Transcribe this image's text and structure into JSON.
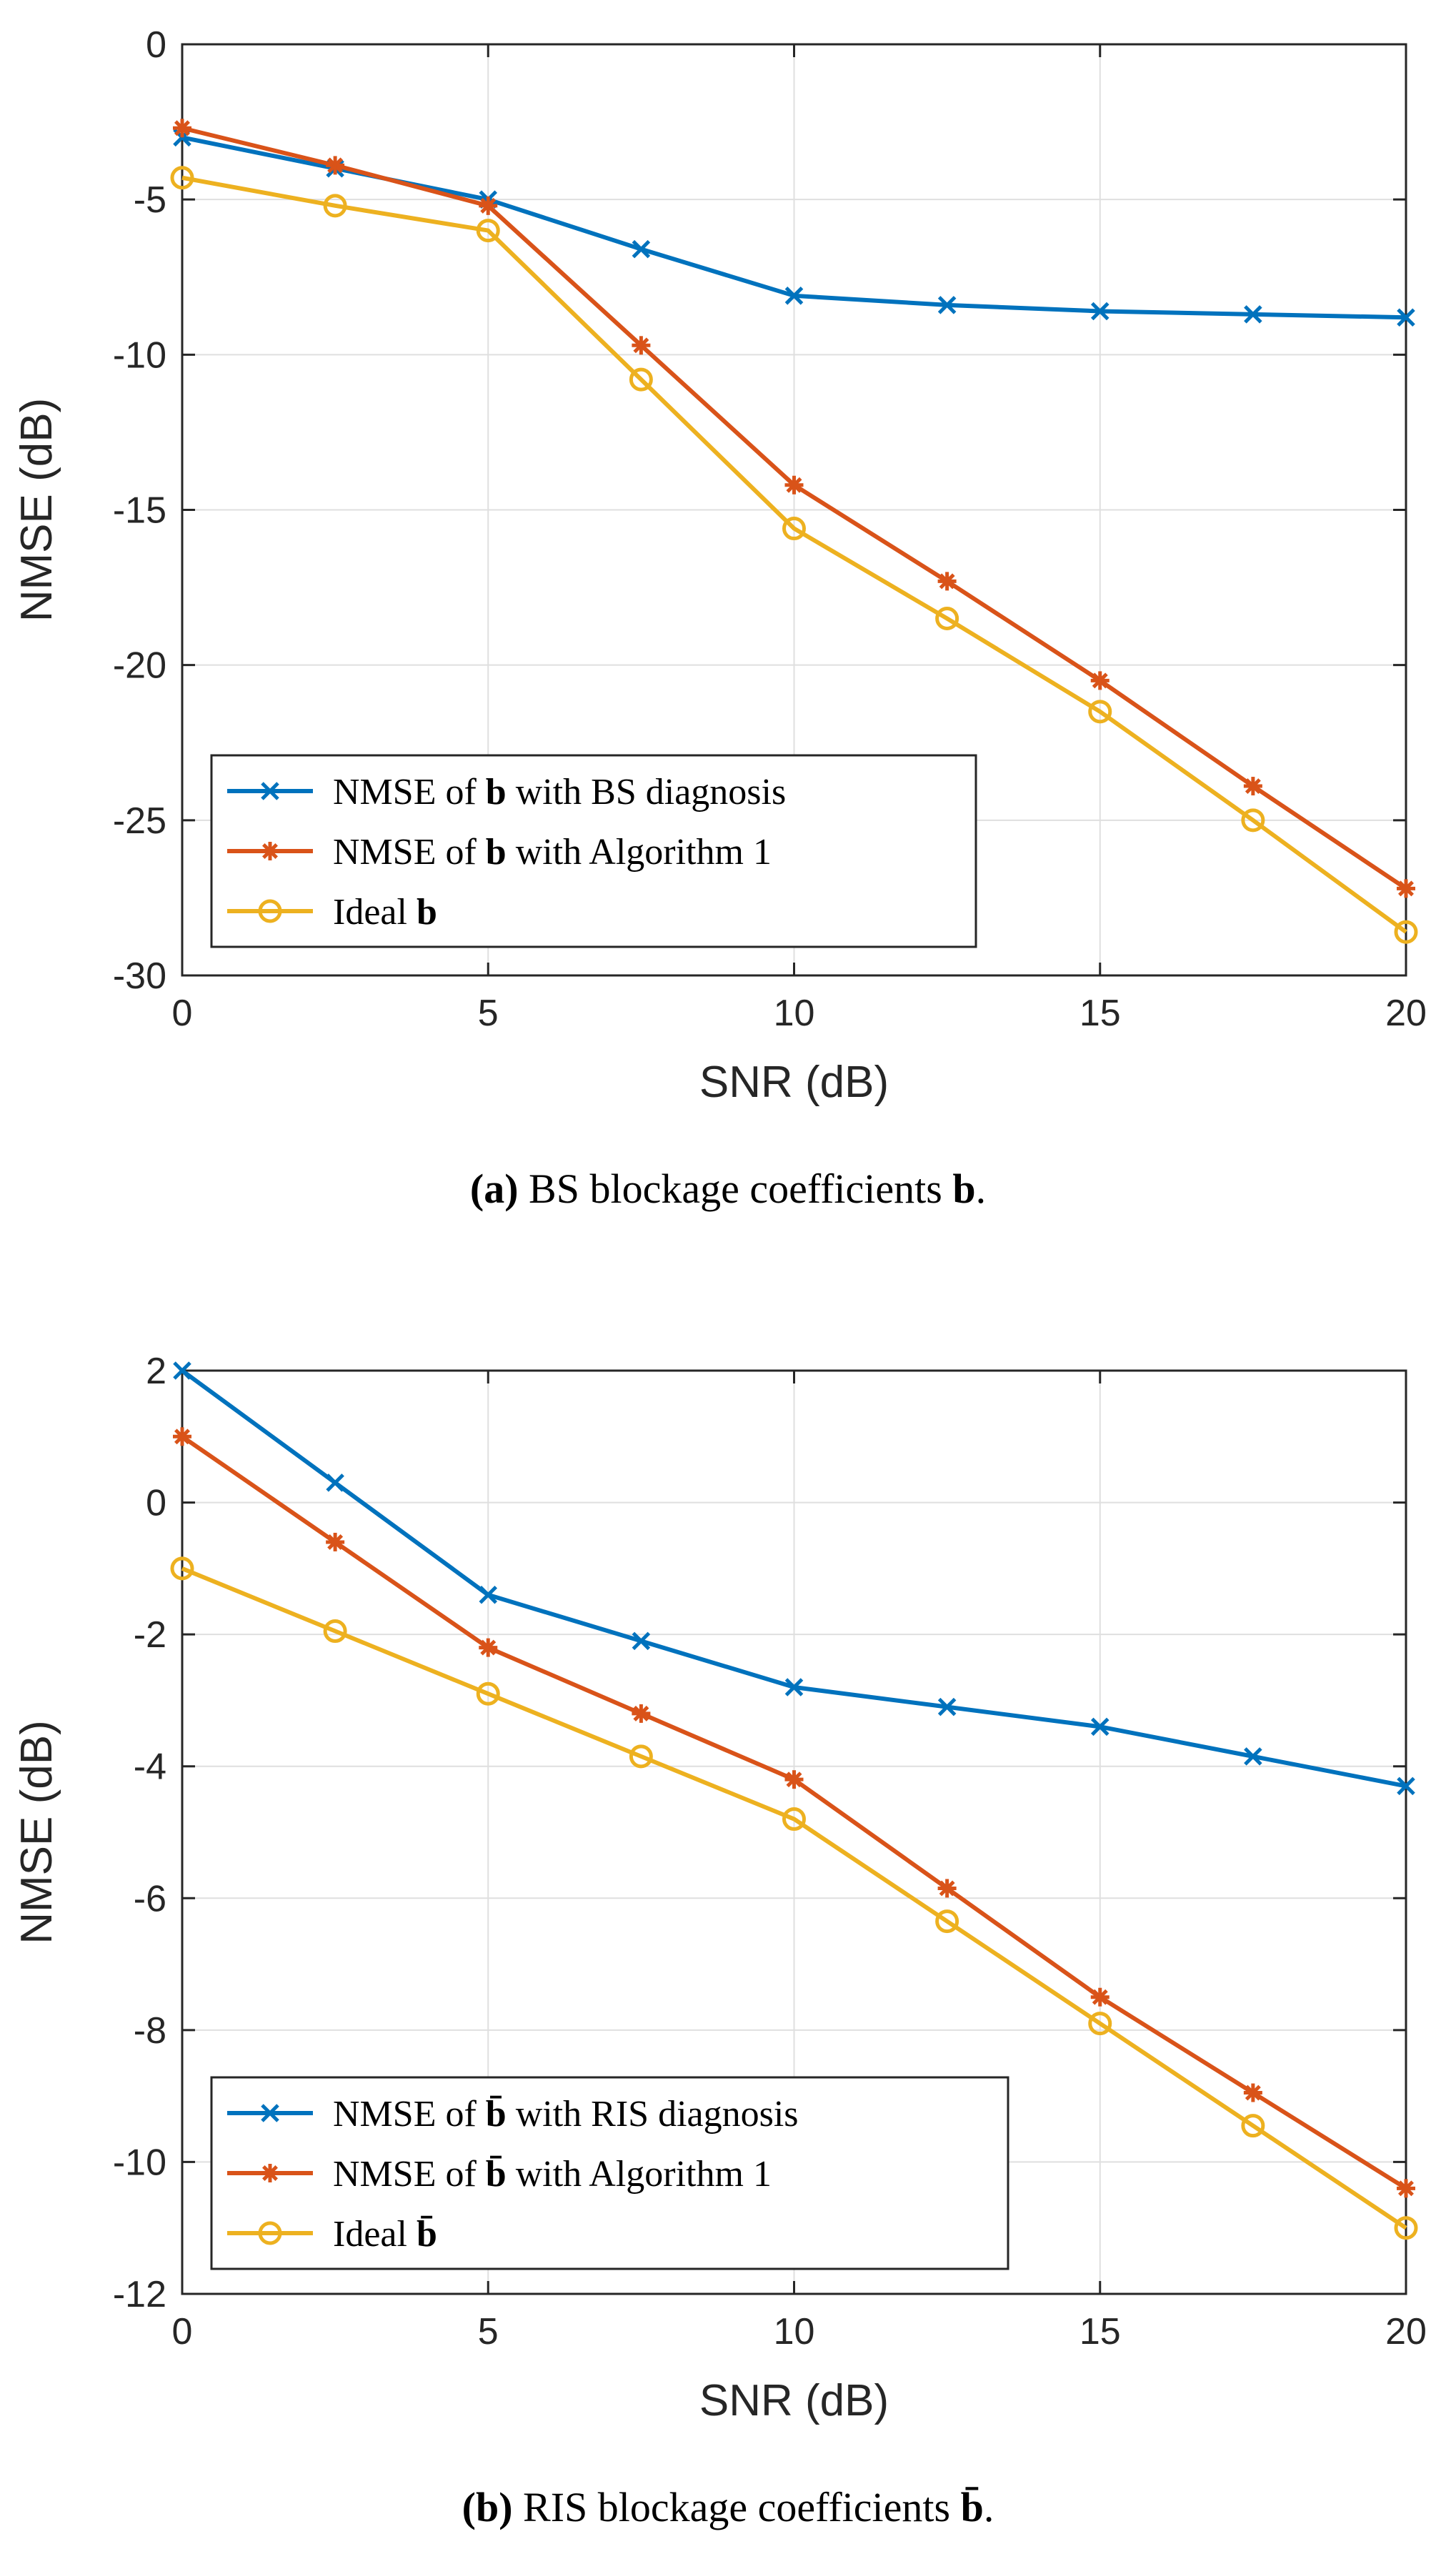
{
  "chart_data": [
    {
      "type": "line",
      "panel": "a",
      "xlabel": "SNR (dB)",
      "ylabel": "NMSE (dB)",
      "xlim": [
        0,
        20
      ],
      "ylim": [
        -30,
        0
      ],
      "xticks": [
        0,
        5,
        10,
        15,
        20
      ],
      "yticks": [
        0,
        -5,
        -10,
        -15,
        -20,
        -25,
        -30
      ],
      "grid": true,
      "legend_location": "bottom-left",
      "x": [
        0,
        2.5,
        5,
        7.5,
        10,
        12.5,
        15,
        17.5,
        20
      ],
      "series": [
        {
          "name": "NMSE of b with BS diagnosis",
          "legend_prefix": "NMSE of ",
          "legend_symbol": "b",
          "legend_suffix": " with BS diagnosis",
          "color": "#0072BD",
          "marker": "x",
          "values": [
            -3.0,
            -4.0,
            -5.0,
            -6.6,
            -8.1,
            -8.4,
            -8.6,
            -8.7,
            -8.8
          ]
        },
        {
          "name": "NMSE of b with Algorithm 1",
          "legend_prefix": "NMSE of ",
          "legend_symbol": "b",
          "legend_suffix": " with Algorithm 1",
          "color": "#D95319",
          "marker": "asterisk",
          "values": [
            -2.7,
            -3.9,
            -5.2,
            -9.7,
            -14.2,
            -17.3,
            -20.5,
            -23.9,
            -27.2
          ]
        },
        {
          "name": "Ideal b",
          "legend_prefix": "Ideal ",
          "legend_symbol": "b",
          "legend_suffix": "",
          "color": "#EDB120",
          "marker": "circle",
          "values": [
            -4.3,
            -5.2,
            -6.0,
            -10.8,
            -15.6,
            -18.5,
            -21.5,
            -25.0,
            -28.6
          ]
        }
      ],
      "caption": {
        "label": "(a)",
        "text": "BS blockage coefficients ",
        "symbol": "b",
        "end": "."
      }
    },
    {
      "type": "line",
      "panel": "b",
      "xlabel": "SNR (dB)",
      "ylabel": "NMSE (dB)",
      "xlim": [
        0,
        20
      ],
      "ylim": [
        -12,
        2
      ],
      "xticks": [
        0,
        5,
        10,
        15,
        20
      ],
      "yticks": [
        2,
        0,
        -2,
        -4,
        -6,
        -8,
        -10,
        -12
      ],
      "grid": true,
      "legend_location": "bottom-left",
      "x": [
        0,
        2.5,
        5,
        7.5,
        10,
        12.5,
        15,
        17.5,
        20
      ],
      "series": [
        {
          "name": "NMSE of b̄ with RIS diagnosis",
          "legend_prefix": "NMSE of ",
          "legend_symbol": "b̄",
          "legend_suffix": " with RIS diagnosis",
          "color": "#0072BD",
          "marker": "x",
          "values": [
            2.0,
            0.3,
            -1.4,
            -2.1,
            -2.8,
            -3.1,
            -3.4,
            -3.85,
            -4.3
          ]
        },
        {
          "name": "NMSE of b̄ with Algorithm 1",
          "legend_prefix": "NMSE of ",
          "legend_symbol": "b̄",
          "legend_suffix": " with Algorithm 1",
          "color": "#D95319",
          "marker": "asterisk",
          "values": [
            1.0,
            -0.6,
            -2.2,
            -3.2,
            -4.2,
            -5.85,
            -7.5,
            -8.95,
            -10.4
          ]
        },
        {
          "name": "Ideal b̄",
          "legend_prefix": "Ideal ",
          "legend_symbol": "b̄",
          "legend_suffix": "",
          "color": "#EDB120",
          "marker": "circle",
          "values": [
            -1.0,
            -1.95,
            -2.9,
            -3.85,
            -4.8,
            -6.35,
            -7.9,
            -9.45,
            -11.0
          ]
        }
      ],
      "caption": {
        "label": "(b)",
        "text": "RIS blockage coefficients ",
        "symbol": "b̄",
        "end": "."
      }
    }
  ]
}
